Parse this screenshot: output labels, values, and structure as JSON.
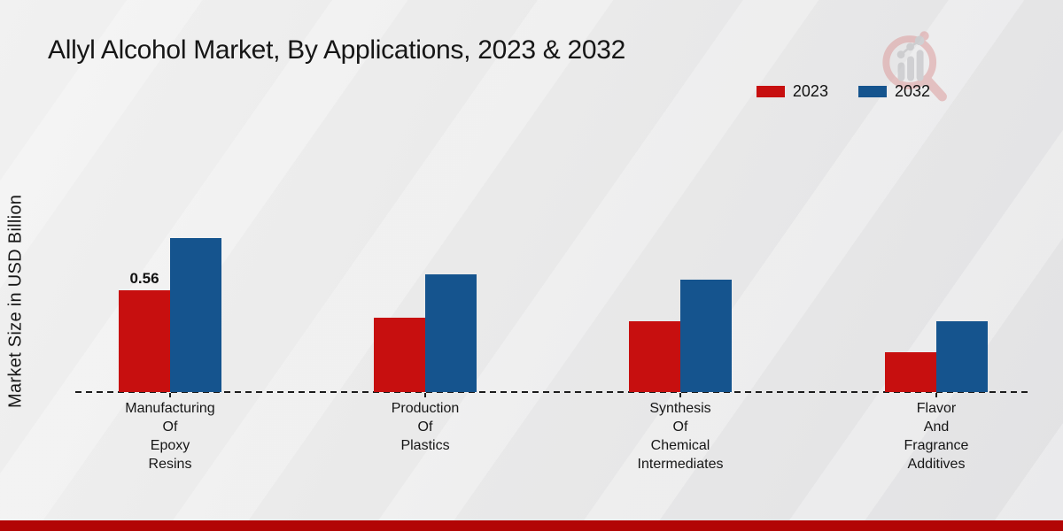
{
  "page": {
    "title": "Allyl Alcohol Market, By Applications, 2023 & 2032",
    "ylabel": "Market Size in USD Billion",
    "footer_color": "#b20505",
    "background_color": "#eaeaea"
  },
  "legend": {
    "items": [
      {
        "label": "2023",
        "color": "#c70f0f"
      },
      {
        "label": "2032",
        "color": "#15548e"
      }
    ]
  },
  "watermark": {
    "name": "market-research-logo",
    "ring_color": "#dc9d9d",
    "bars_color": "#b9b9bd"
  },
  "chart_data": {
    "type": "bar",
    "title": "Allyl Alcohol Market, By Applications, 2023 & 2032",
    "xlabel": "",
    "ylabel": "Market Size in USD Billion",
    "categories": [
      "Manufacturing\nOf\nEpoxy\nResins",
      "Production\nOf\nPlastics",
      "Synthesis\nOf\nChemical\nIntermediates",
      "Flavor\nAnd\nFragrance\nAdditives"
    ],
    "series": [
      {
        "name": "2023",
        "color": "#c70f0f",
        "values": [
          0.56,
          0.41,
          0.39,
          0.22
        ]
      },
      {
        "name": "2032",
        "color": "#15548e",
        "values": [
          0.85,
          0.65,
          0.62,
          0.39
        ]
      }
    ],
    "bar_labels": [
      {
        "series": "2023",
        "category_index": 0,
        "text": "0.56"
      }
    ],
    "ylim": [
      0,
      0.9
    ],
    "grid": false,
    "axis_style": "dashed-baseline-only",
    "legend_position": "top-right"
  }
}
